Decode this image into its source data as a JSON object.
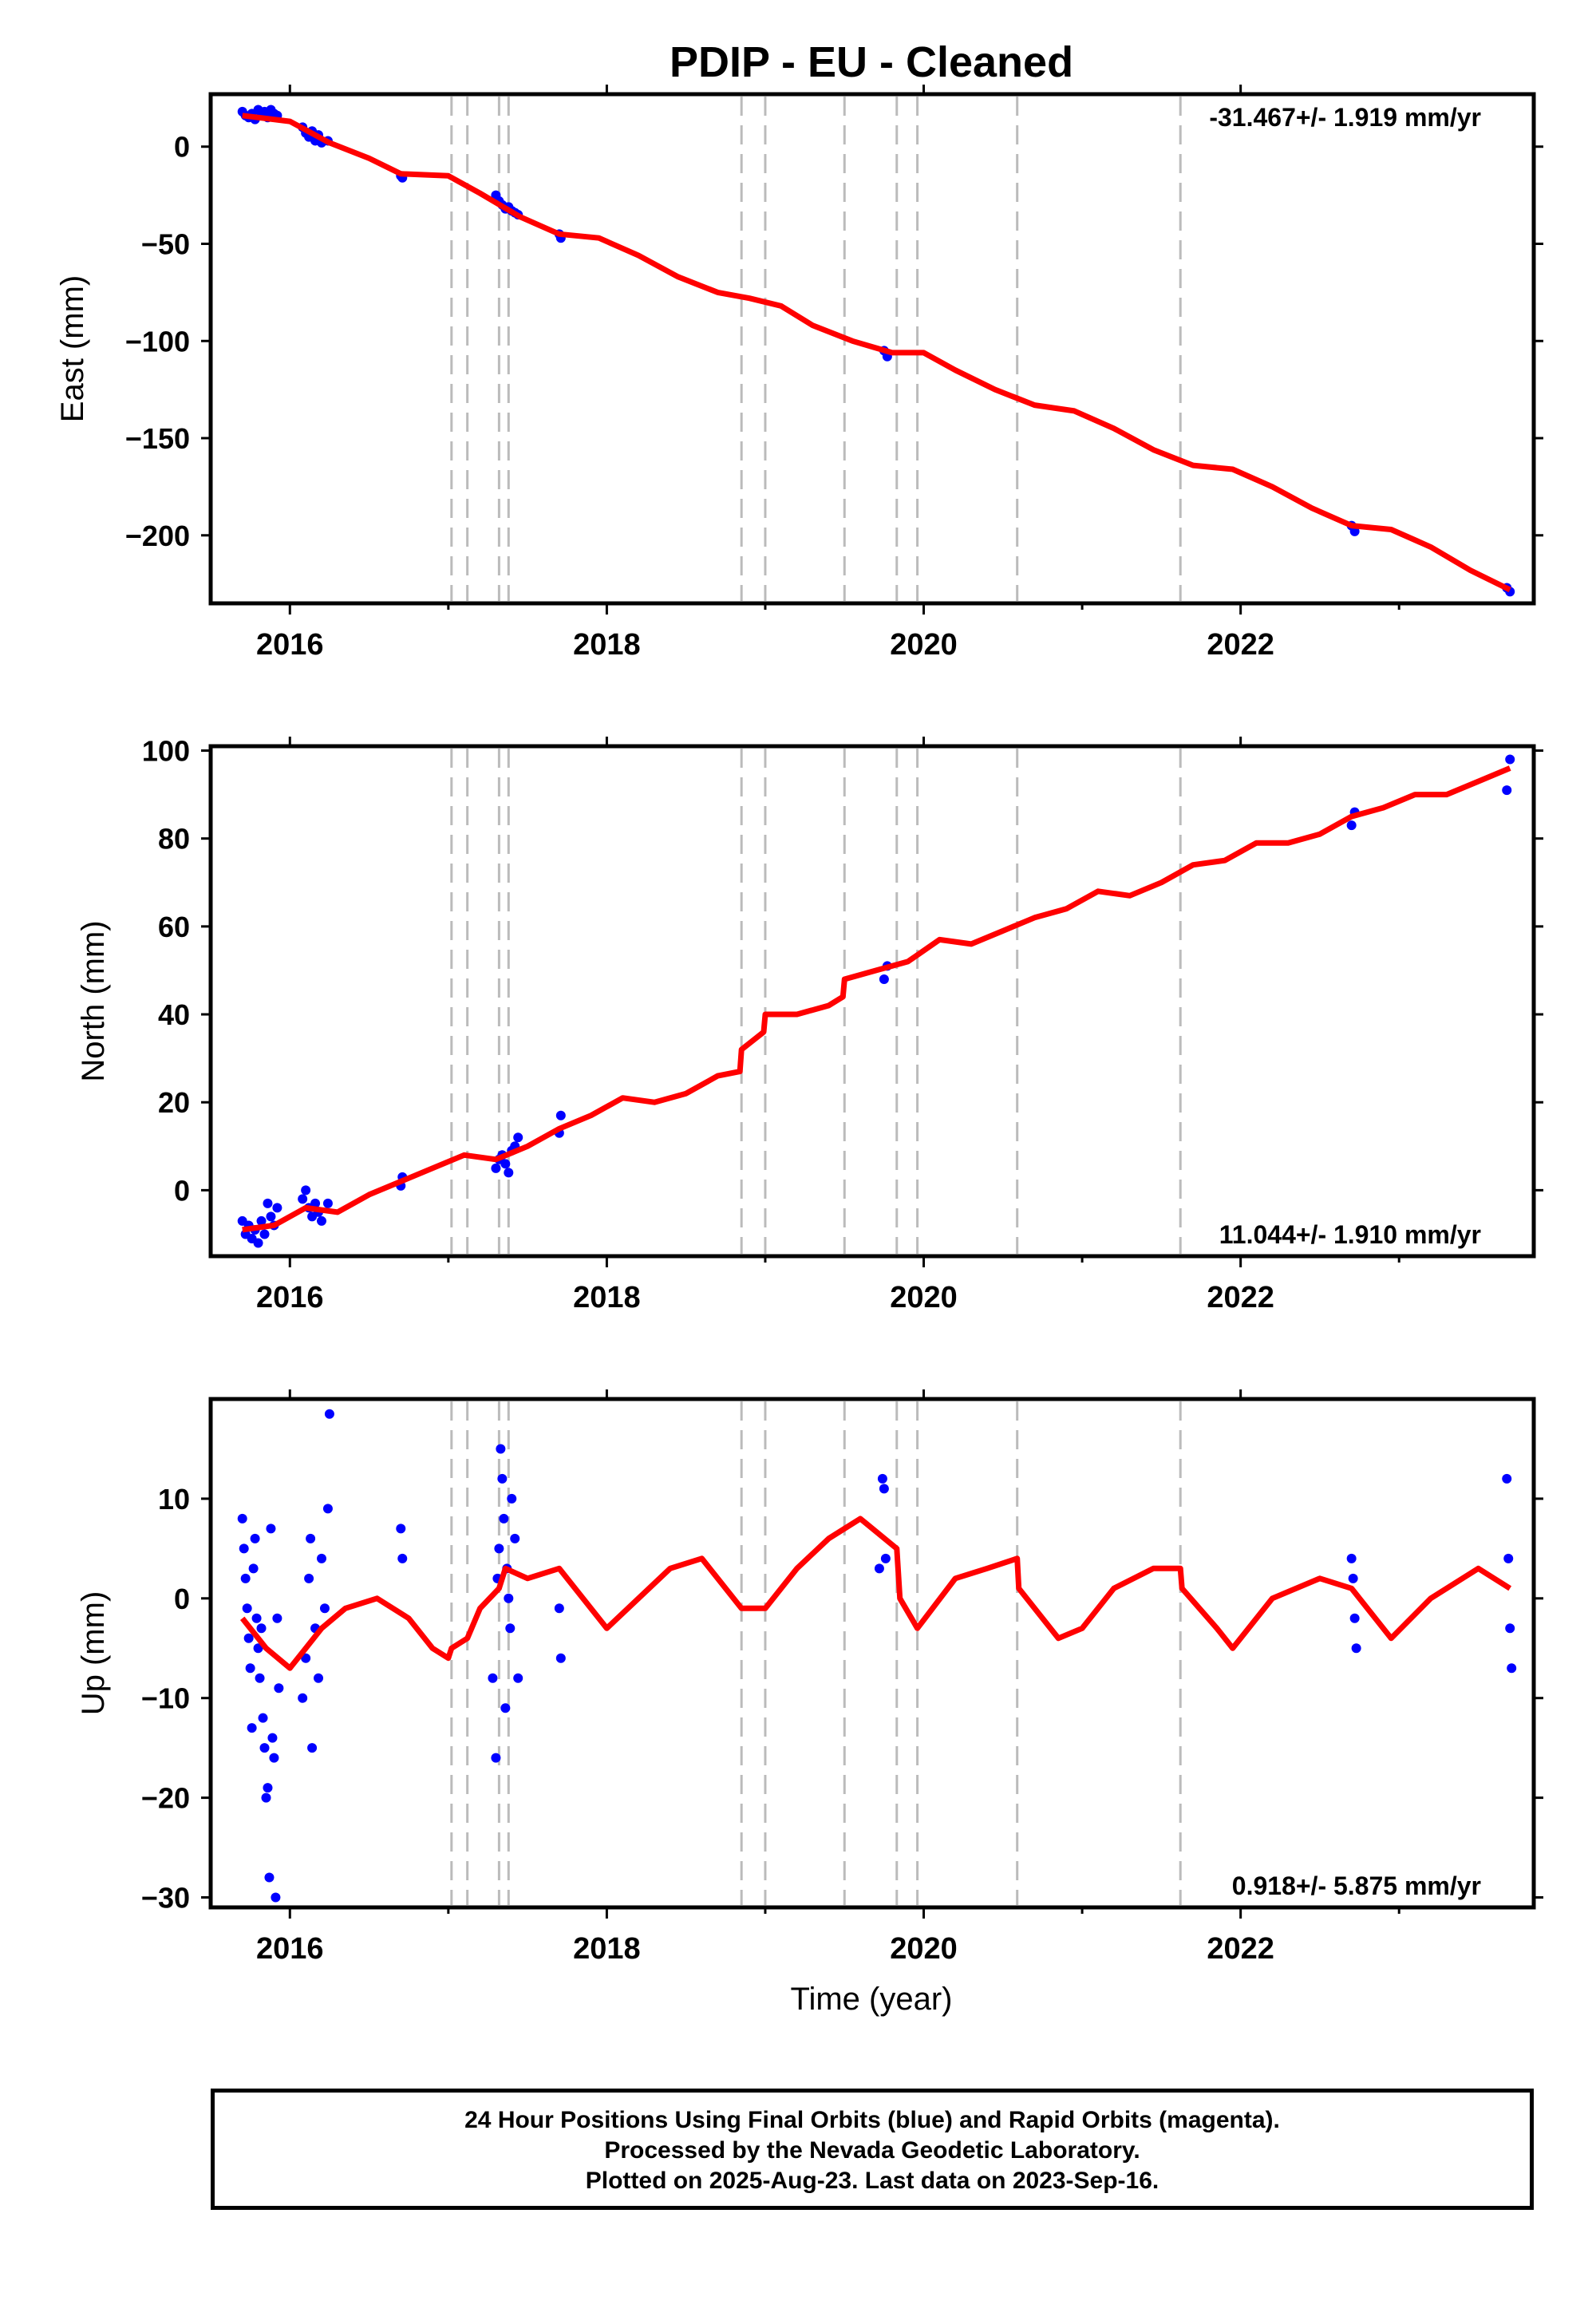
{
  "chart_data": {
    "type": "scatter",
    "title": "PDIP  - EU - Cleaned",
    "xlabel": "Time (year)",
    "x_ticks": [
      "2016",
      "2018",
      "2020",
      "2022"
    ],
    "xlim": [
      2015.5,
      2023.85
    ],
    "offsets": [
      2017.02,
      2017.12,
      2017.32,
      2017.38,
      2018.85,
      2019.0,
      2019.5,
      2019.83,
      2019.96,
      2020.59,
      2021.62
    ],
    "colors": {
      "final": "#0000ff",
      "model": "#ff0000",
      "offsets": "#bbbbbb"
    },
    "panels": [
      {
        "component": "East",
        "ylabel": "East (mm)",
        "ylim": [
          -235,
          27
        ],
        "y_ticks": [
          0,
          -50,
          -100,
          -150,
          -200
        ],
        "y_tick_labels": [
          "0",
          "−50",
          "−100",
          "−150",
          "−200"
        ],
        "rate": "-31.467+/- 1.919 mm/yr",
        "rate_pos": "top-right",
        "points": [
          [
            2015.7,
            18
          ],
          [
            2015.72,
            16
          ],
          [
            2015.74,
            15
          ],
          [
            2015.76,
            17
          ],
          [
            2015.78,
            14
          ],
          [
            2015.8,
            19
          ],
          [
            2015.82,
            16
          ],
          [
            2015.84,
            18
          ],
          [
            2015.86,
            15
          ],
          [
            2015.88,
            19
          ],
          [
            2015.9,
            17
          ],
          [
            2015.92,
            16
          ],
          [
            2016.08,
            10
          ],
          [
            2016.1,
            7
          ],
          [
            2016.12,
            5
          ],
          [
            2016.14,
            8
          ],
          [
            2016.16,
            3
          ],
          [
            2016.18,
            6
          ],
          [
            2016.2,
            2
          ],
          [
            2016.24,
            3
          ],
          [
            2016.7,
            -15
          ],
          [
            2016.71,
            -16
          ],
          [
            2017.3,
            -25
          ],
          [
            2017.32,
            -28
          ],
          [
            2017.34,
            -30
          ],
          [
            2017.36,
            -32
          ],
          [
            2017.38,
            -31
          ],
          [
            2017.4,
            -33
          ],
          [
            2017.42,
            -34
          ],
          [
            2017.44,
            -35
          ],
          [
            2017.7,
            -45
          ],
          [
            2017.71,
            -47
          ],
          [
            2019.75,
            -105
          ],
          [
            2019.77,
            -108
          ],
          [
            2022.7,
            -195
          ],
          [
            2022.72,
            -198
          ],
          [
            2023.68,
            -227
          ],
          [
            2023.7,
            -229
          ]
        ],
        "model": [
          [
            2015.7,
            16
          ],
          [
            2016.0,
            13
          ],
          [
            2016.25,
            2
          ],
          [
            2016.5,
            -6
          ],
          [
            2016.7,
            -14
          ],
          [
            2017.0,
            -15
          ],
          [
            2017.2,
            -24
          ],
          [
            2017.45,
            -36
          ],
          [
            2017.7,
            -45
          ],
          [
            2017.95,
            -47
          ],
          [
            2018.2,
            -56
          ],
          [
            2018.45,
            -67
          ],
          [
            2018.7,
            -75
          ],
          [
            2018.9,
            -78
          ],
          [
            2019.1,
            -82
          ],
          [
            2019.3,
            -92
          ],
          [
            2019.55,
            -100
          ],
          [
            2019.8,
            -106
          ],
          [
            2020.0,
            -106
          ],
          [
            2020.2,
            -115
          ],
          [
            2020.45,
            -125
          ],
          [
            2020.7,
            -133
          ],
          [
            2020.95,
            -136
          ],
          [
            2021.2,
            -145
          ],
          [
            2021.45,
            -156
          ],
          [
            2021.7,
            -164
          ],
          [
            2021.95,
            -166
          ],
          [
            2022.2,
            -175
          ],
          [
            2022.45,
            -186
          ],
          [
            2022.7,
            -195
          ],
          [
            2022.95,
            -197
          ],
          [
            2023.2,
            -206
          ],
          [
            2023.45,
            -218
          ],
          [
            2023.7,
            -228
          ]
        ]
      },
      {
        "component": "North",
        "ylabel": "North (mm)",
        "ylim": [
          -15,
          101
        ],
        "y_ticks": [
          0,
          20,
          40,
          60,
          80,
          100
        ],
        "y_tick_labels": [
          "0",
          "20",
          "40",
          "60",
          "80",
          "100"
        ],
        "rate": "11.044+/- 1.910 mm/yr",
        "rate_pos": "bottom-right",
        "points": [
          [
            2015.7,
            -7
          ],
          [
            2015.72,
            -10
          ],
          [
            2015.74,
            -8
          ],
          [
            2015.76,
            -11
          ],
          [
            2015.78,
            -9
          ],
          [
            2015.8,
            -12
          ],
          [
            2015.82,
            -7
          ],
          [
            2015.84,
            -10
          ],
          [
            2015.86,
            -3
          ],
          [
            2015.88,
            -6
          ],
          [
            2015.9,
            -8
          ],
          [
            2015.92,
            -4
          ],
          [
            2016.08,
            -2
          ],
          [
            2016.1,
            0
          ],
          [
            2016.12,
            -4
          ],
          [
            2016.14,
            -6
          ],
          [
            2016.16,
            -3
          ],
          [
            2016.18,
            -5
          ],
          [
            2016.2,
            -7
          ],
          [
            2016.24,
            -3
          ],
          [
            2016.7,
            1
          ],
          [
            2016.71,
            3
          ],
          [
            2017.3,
            5
          ],
          [
            2017.32,
            7
          ],
          [
            2017.34,
            8
          ],
          [
            2017.36,
            6
          ],
          [
            2017.38,
            4
          ],
          [
            2017.4,
            9
          ],
          [
            2017.42,
            10
          ],
          [
            2017.44,
            12
          ],
          [
            2017.7,
            13
          ],
          [
            2017.71,
            17
          ],
          [
            2019.75,
            48
          ],
          [
            2019.77,
            51
          ],
          [
            2022.7,
            83
          ],
          [
            2022.72,
            86
          ],
          [
            2023.68,
            91
          ],
          [
            2023.7,
            98
          ]
        ],
        "model": [
          [
            2015.7,
            -9
          ],
          [
            2015.9,
            -8
          ],
          [
            2016.1,
            -4
          ],
          [
            2016.3,
            -5
          ],
          [
            2016.5,
            -1
          ],
          [
            2016.7,
            2
          ],
          [
            2016.9,
            5
          ],
          [
            2017.1,
            8
          ],
          [
            2017.3,
            7
          ],
          [
            2017.5,
            10
          ],
          [
            2017.7,
            14
          ],
          [
            2017.9,
            17
          ],
          [
            2018.1,
            21
          ],
          [
            2018.3,
            20
          ],
          [
            2018.5,
            22
          ],
          [
            2018.7,
            26
          ],
          [
            2018.84,
            27
          ],
          [
            2018.85,
            32
          ],
          [
            2018.99,
            36
          ],
          [
            2019.0,
            40
          ],
          [
            2019.2,
            40
          ],
          [
            2019.4,
            42
          ],
          [
            2019.49,
            44
          ],
          [
            2019.5,
            48
          ],
          [
            2019.7,
            50
          ],
          [
            2019.9,
            52
          ],
          [
            2020.1,
            57
          ],
          [
            2020.3,
            56
          ],
          [
            2020.5,
            59
          ],
          [
            2020.7,
            62
          ],
          [
            2020.9,
            64
          ],
          [
            2021.1,
            68
          ],
          [
            2021.3,
            67
          ],
          [
            2021.5,
            70
          ],
          [
            2021.7,
            74
          ],
          [
            2021.9,
            75
          ],
          [
            2022.1,
            79
          ],
          [
            2022.3,
            79
          ],
          [
            2022.5,
            81
          ],
          [
            2022.7,
            85
          ],
          [
            2022.9,
            87
          ],
          [
            2023.1,
            90
          ],
          [
            2023.3,
            90
          ],
          [
            2023.5,
            93
          ],
          [
            2023.7,
            96
          ]
        ]
      },
      {
        "component": "Up",
        "ylabel": "Up (mm)",
        "ylim": [
          -31,
          20
        ],
        "y_ticks": [
          10,
          0,
          -10,
          -20,
          -30
        ],
        "y_tick_labels": [
          "10",
          "0",
          "−10",
          "−20",
          "−30"
        ],
        "rate": "0.918+/- 5.875 mm/yr",
        "rate_pos": "bottom-right",
        "points": [
          [
            2015.7,
            8
          ],
          [
            2015.71,
            5
          ],
          [
            2015.72,
            2
          ],
          [
            2015.73,
            -1
          ],
          [
            2015.74,
            -4
          ],
          [
            2015.75,
            -7
          ],
          [
            2015.76,
            -13
          ],
          [
            2015.77,
            3
          ],
          [
            2015.78,
            6
          ],
          [
            2015.79,
            -2
          ],
          [
            2015.8,
            -5
          ],
          [
            2015.81,
            -8
          ],
          [
            2015.82,
            -3
          ],
          [
            2015.83,
            -12
          ],
          [
            2015.84,
            -15
          ],
          [
            2015.85,
            -20
          ],
          [
            2015.86,
            -19
          ],
          [
            2015.87,
            -28
          ],
          [
            2015.88,
            7
          ],
          [
            2015.89,
            -14
          ],
          [
            2015.9,
            -16
          ],
          [
            2015.91,
            -30
          ],
          [
            2015.92,
            -2
          ],
          [
            2015.93,
            -9
          ],
          [
            2016.08,
            -10
          ],
          [
            2016.1,
            -6
          ],
          [
            2016.12,
            2
          ],
          [
            2016.13,
            6
          ],
          [
            2016.14,
            -15
          ],
          [
            2016.16,
            -3
          ],
          [
            2016.18,
            -8
          ],
          [
            2016.2,
            4
          ],
          [
            2016.22,
            -1
          ],
          [
            2016.24,
            9
          ],
          [
            2016.25,
            18.5
          ],
          [
            2016.7,
            7
          ],
          [
            2016.71,
            4
          ],
          [
            2017.28,
            -8
          ],
          [
            2017.3,
            -16
          ],
          [
            2017.31,
            2
          ],
          [
            2017.32,
            5
          ],
          [
            2017.33,
            15
          ],
          [
            2017.34,
            12
          ],
          [
            2017.35,
            8
          ],
          [
            2017.36,
            -11
          ],
          [
            2017.37,
            3
          ],
          [
            2017.38,
            0
          ],
          [
            2017.39,
            -3
          ],
          [
            2017.4,
            10
          ],
          [
            2017.42,
            6
          ],
          [
            2017.44,
            -8
          ],
          [
            2017.7,
            -1
          ],
          [
            2017.71,
            -6
          ],
          [
            2019.72,
            3
          ],
          [
            2019.74,
            12
          ],
          [
            2019.75,
            11
          ],
          [
            2019.76,
            4
          ],
          [
            2022.7,
            4
          ],
          [
            2022.71,
            2
          ],
          [
            2022.72,
            -2
          ],
          [
            2022.73,
            -5
          ],
          [
            2023.68,
            12
          ],
          [
            2023.69,
            4
          ],
          [
            2023.7,
            -3
          ],
          [
            2023.71,
            -7
          ]
        ],
        "model": [
          [
            2015.7,
            -2
          ],
          [
            2015.85,
            -5
          ],
          [
            2016.0,
            -7
          ],
          [
            2016.2,
            -3
          ],
          [
            2016.35,
            -1
          ],
          [
            2016.55,
            0
          ],
          [
            2016.75,
            -2
          ],
          [
            2016.9,
            -5
          ],
          [
            2017.0,
            -6
          ],
          [
            2017.02,
            -5
          ],
          [
            2017.12,
            -4
          ],
          [
            2017.2,
            -1
          ],
          [
            2017.32,
            1
          ],
          [
            2017.36,
            3
          ],
          [
            2017.5,
            2
          ],
          [
            2017.7,
            3
          ],
          [
            2017.85,
            0
          ],
          [
            2018.0,
            -3
          ],
          [
            2018.2,
            0
          ],
          [
            2018.4,
            3
          ],
          [
            2018.6,
            4
          ],
          [
            2018.85,
            -1
          ],
          [
            2019.0,
            -1
          ],
          [
            2019.2,
            3
          ],
          [
            2019.4,
            6
          ],
          [
            2019.5,
            7
          ],
          [
            2019.6,
            8
          ],
          [
            2019.83,
            5
          ],
          [
            2019.85,
            0
          ],
          [
            2019.96,
            -3
          ],
          [
            2020.2,
            2
          ],
          [
            2020.4,
            3
          ],
          [
            2020.59,
            4
          ],
          [
            2020.6,
            1
          ],
          [
            2020.85,
            -4
          ],
          [
            2021.0,
            -3
          ],
          [
            2021.2,
            1
          ],
          [
            2021.45,
            3
          ],
          [
            2021.62,
            3
          ],
          [
            2021.63,
            1
          ],
          [
            2021.85,
            -3
          ],
          [
            2021.95,
            -5
          ],
          [
            2022.2,
            0
          ],
          [
            2022.5,
            2
          ],
          [
            2022.7,
            1
          ],
          [
            2022.95,
            -4
          ],
          [
            2023.2,
            0
          ],
          [
            2023.5,
            3
          ],
          [
            2023.7,
            1
          ]
        ]
      }
    ]
  },
  "caption": {
    "line1": "24 Hour Positions Using Final Orbits (blue) and Rapid Orbits (magenta).",
    "line2": "Processed by the Nevada Geodetic Laboratory.",
    "line3": "Plotted on 2025-Aug-23. Last data on 2023-Sep-16."
  }
}
